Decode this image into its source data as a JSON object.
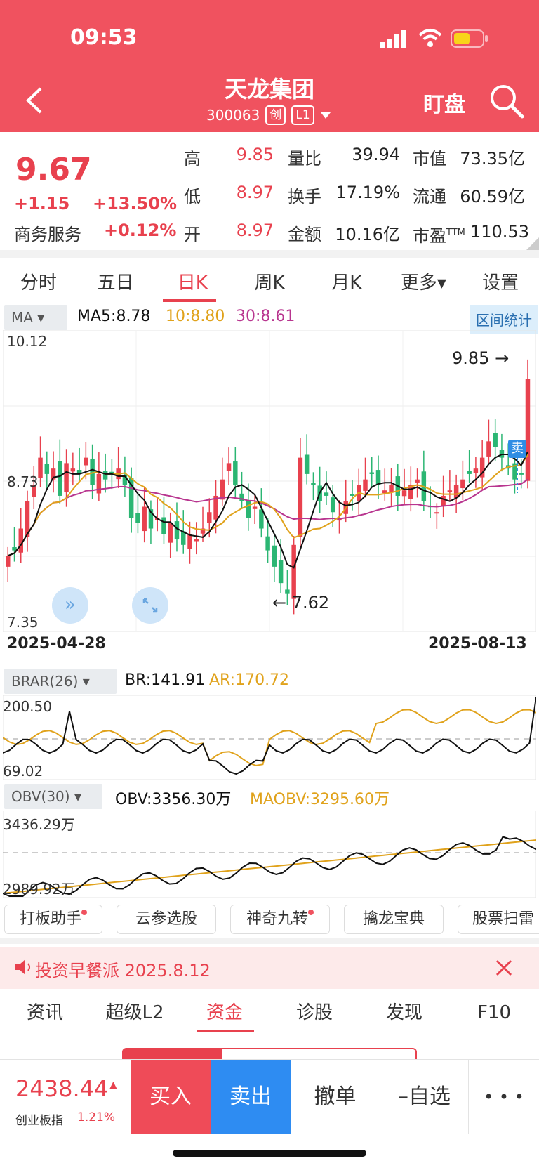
{
  "status_bar": {
    "time": "09:53"
  },
  "header": {
    "title": "天龙集团",
    "code": "300063",
    "badge1": "创",
    "badge2": "L1",
    "watch_label": "盯盘"
  },
  "quote": {
    "price": "9.67",
    "change": "+1.15",
    "change_pct": "+13.50%",
    "sector": "商务服务",
    "sector_pct": "+0.12%",
    "high_label": "高",
    "high": "9.85",
    "low_label": "低",
    "low": "8.97",
    "open_label": "开",
    "open": "8.97",
    "vol_ratio_label": "量比",
    "vol_ratio": "39.94",
    "turnover_label": "换手",
    "turnover": "17.19%",
    "amount_label": "金额",
    "amount": "10.16亿",
    "mktcap_label": "市值",
    "mktcap": "73.35亿",
    "float_label": "流通",
    "float": "60.59亿",
    "pe_label": "市盈",
    "pe_sup": "TTM",
    "pe": "110.53"
  },
  "period_tabs": [
    "分时",
    "五日",
    "日K",
    "周K",
    "月K",
    "更多▾",
    "设置"
  ],
  "kline": {
    "ma_selector": "MA ▾",
    "ma5": "MA5:8.78",
    "ma10": "10:8.80",
    "ma30": "30:8.61",
    "range_stat": "区间统计",
    "y_top": "10.12",
    "y_mid": "8.73",
    "y_bottom": "7.35",
    "max_label": "9.85",
    "min_label": "7.62",
    "sell_marker": "卖",
    "date_start": "2025-04-28",
    "date_end": "2025-08-13",
    "colors": {
      "up": "#e8414e",
      "down": "#2bb673",
      "ma5": "#111111",
      "ma10": "#e0a21b",
      "ma30": "#b8358f"
    }
  },
  "brar": {
    "selector": "BRAR(26) ▾",
    "br": "BR:141.91",
    "ar": "AR:170.72",
    "y_top": "200.50",
    "y_bottom": "69.02"
  },
  "obv": {
    "selector": "OBV(30) ▾",
    "obv": "OBV:3356.30万",
    "maobv": "MAOBV:3295.60万",
    "y_top": "3436.29万",
    "y_bottom": "2989.92万"
  },
  "shortcuts": [
    "打板助手",
    "云参选股",
    "神奇九转",
    "擒龙宝典",
    "股票扫雷"
  ],
  "news": {
    "text": "投资早餐派 2025.8.12"
  },
  "sub_tabs": [
    "资讯",
    "超级L2",
    "资金",
    "诊股",
    "发现",
    "F10"
  ],
  "bottom_bar": {
    "index_value": "2438.44",
    "index_arrow": "▲",
    "index_name": "创业板指",
    "index_pct": "1.21%",
    "buy": "买入",
    "sell": "卖出",
    "cancel": "撤单",
    "watchlist": "–自选",
    "more": "• • •"
  }
}
